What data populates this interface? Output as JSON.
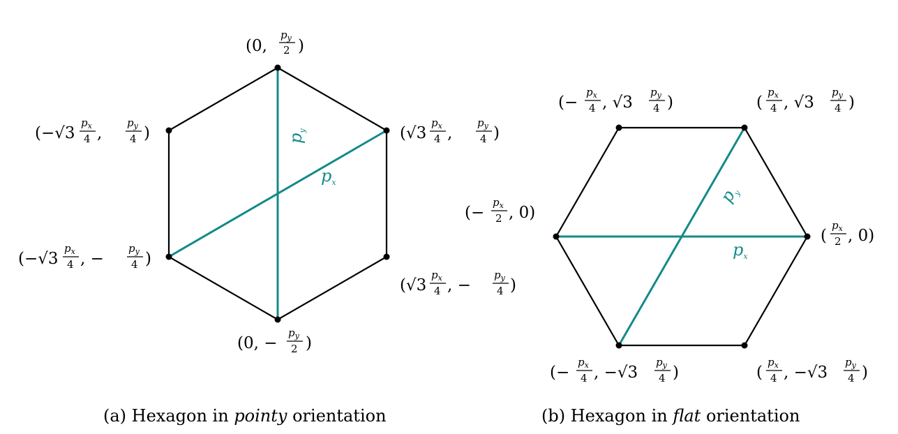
{
  "colors": {
    "edge": "#000000",
    "diagonal": "#138a8a",
    "vertex": "#000000"
  },
  "figure_a": {
    "caption_prefix": "(a) Hexagon in ",
    "caption_emph": "pointy",
    "caption_suffix": " orientation",
    "diagonal_labels": {
      "px": "p",
      "px_sub": "x",
      "py": "p",
      "py_sub": "y"
    },
    "vertices": [
      {
        "id": "top",
        "coord": "(0, p_y/2)"
      },
      {
        "id": "upper-right",
        "coord": "(√3 p_x/4, p_y/4)"
      },
      {
        "id": "lower-right",
        "coord": "(√3 p_x/4, −p_y/4)"
      },
      {
        "id": "bottom",
        "coord": "(0, −p_y/2)"
      },
      {
        "id": "lower-left",
        "coord": "(−√3 p_x/4, −p_y/4)"
      },
      {
        "id": "upper-left",
        "coord": "(−√3 p_x/4, p_y/4)"
      }
    ]
  },
  "figure_b": {
    "caption_prefix": "(b) Hexagon in ",
    "caption_emph": "flat",
    "caption_suffix": " orientation",
    "diagonal_labels": {
      "px": "p",
      "px_sub": "x",
      "py": "p",
      "py_sub": "y"
    },
    "vertices": [
      {
        "id": "right",
        "coord": "(p_x/2, 0)"
      },
      {
        "id": "upper-right",
        "coord": "(p_x/4, √3 p_y/4)"
      },
      {
        "id": "upper-left",
        "coord": "(−p_x/4, √3 p_y/4)"
      },
      {
        "id": "left",
        "coord": "(−p_x/2, 0)"
      },
      {
        "id": "lower-left",
        "coord": "(−p_x/4, −√3 p_y/4)"
      },
      {
        "id": "lower-right",
        "coord": "(p_x/4, −√3 p_y/4)"
      }
    ]
  }
}
